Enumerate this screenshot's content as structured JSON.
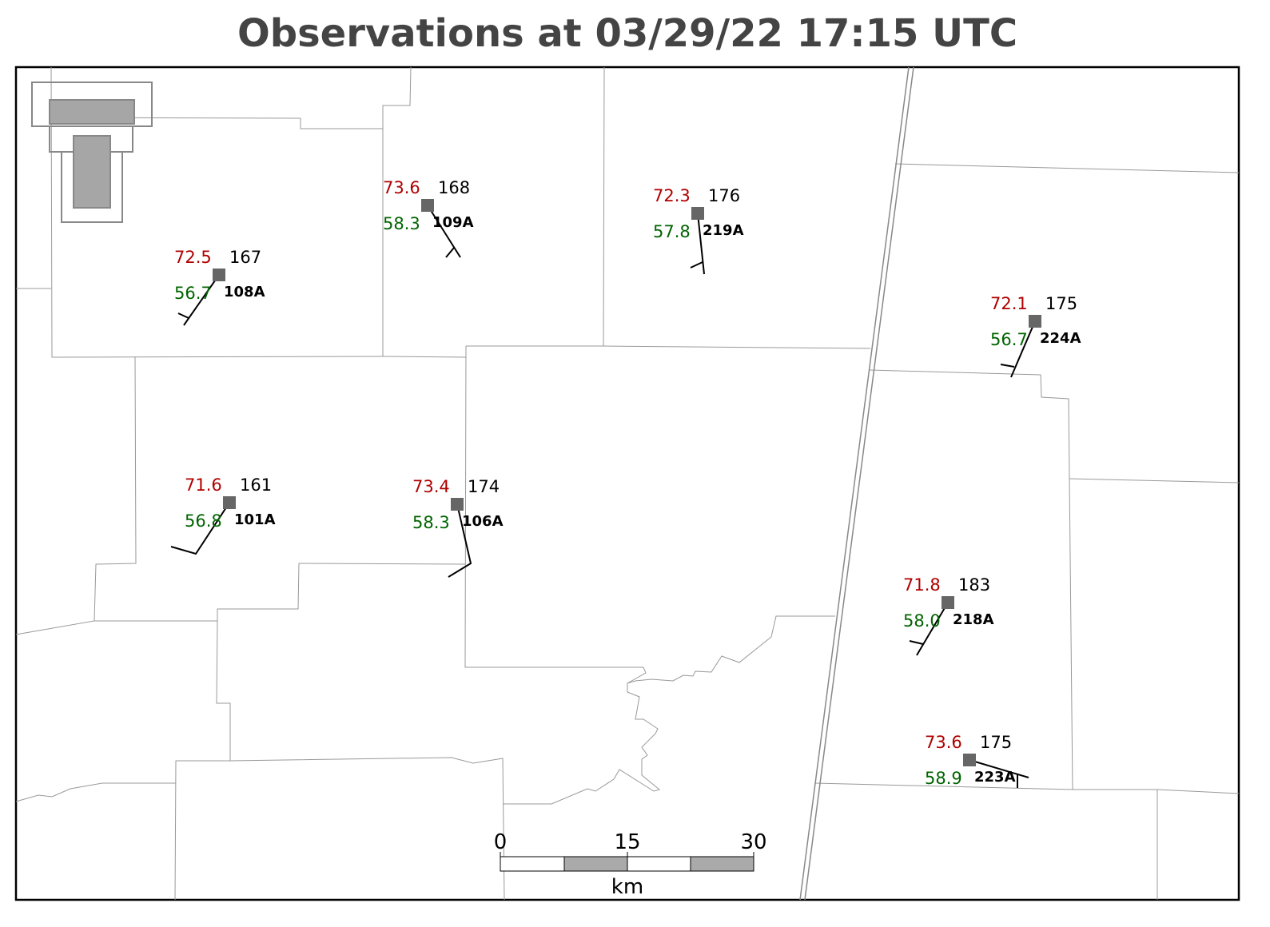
{
  "header": {
    "title": "Observations at 03/29/22 17:15 UTC"
  },
  "stations": [
    {
      "id": "108A",
      "temperature": "72.5",
      "dewpoint": "56.7",
      "value": "167"
    },
    {
      "id": "109A",
      "temperature": "73.6",
      "dewpoint": "58.3",
      "value": "168"
    },
    {
      "id": "219A",
      "temperature": "72.3",
      "dewpoint": "57.8",
      "value": "176"
    },
    {
      "id": "224A",
      "temperature": "72.1",
      "dewpoint": "56.7",
      "value": "175"
    },
    {
      "id": "101A",
      "temperature": "71.6",
      "dewpoint": "56.8",
      "value": "161"
    },
    {
      "id": "106A",
      "temperature": "73.4",
      "dewpoint": "58.3",
      "value": "174"
    },
    {
      "id": "218A",
      "temperature": "71.8",
      "dewpoint": "58.0",
      "value": "183"
    },
    {
      "id": "223A",
      "temperature": "73.6",
      "dewpoint": "58.9",
      "value": "175"
    }
  ],
  "scale_bar": {
    "ticks": [
      "0",
      "15",
      "30"
    ],
    "unit": "km"
  }
}
